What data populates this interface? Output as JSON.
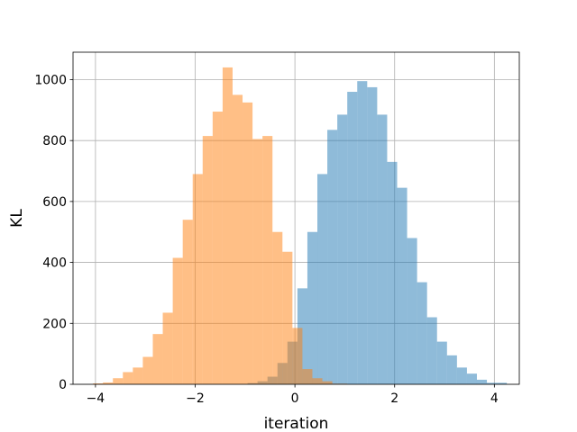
{
  "chart_data": {
    "type": "histogram",
    "xlabel": "iteration",
    "ylabel": "KL",
    "xlim": [
      -4.45,
      4.5
    ],
    "ylim": [
      0,
      1090
    ],
    "grid": true,
    "x_ticks": [
      -4,
      -2,
      0,
      2,
      4
    ],
    "x_tick_labels": [
      "−4",
      "−2",
      "0",
      "2",
      "4"
    ],
    "y_ticks": [
      0,
      200,
      400,
      600,
      800,
      1000
    ],
    "y_tick_labels": [
      "0",
      "200",
      "400",
      "600",
      "800",
      "1000"
    ],
    "series": [
      {
        "color": "#1f77b4",
        "opacity": 0.5,
        "bin_edges": [
          -0.95,
          -0.75,
          -0.55,
          -0.35,
          -0.15,
          0.05,
          0.25,
          0.45,
          0.65,
          0.85,
          1.05,
          1.25,
          1.45,
          1.65,
          1.85,
          2.05,
          2.25,
          2.45,
          2.65,
          2.85,
          3.05,
          3.25,
          3.45,
          3.65,
          3.85,
          4.05,
          4.25
        ],
        "counts": [
          4,
          10,
          25,
          70,
          140,
          315,
          500,
          690,
          835,
          885,
          960,
          995,
          975,
          885,
          730,
          645,
          480,
          335,
          220,
          140,
          95,
          55,
          35,
          15,
          5,
          5
        ]
      },
      {
        "color": "#ff7f0e",
        "opacity": 0.5,
        "bin_edges": [
          -4.05,
          -3.85,
          -3.65,
          -3.45,
          -3.25,
          -3.05,
          -2.85,
          -2.65,
          -2.45,
          -2.25,
          -2.05,
          -1.85,
          -1.65,
          -1.45,
          -1.25,
          -1.05,
          -0.85,
          -0.65,
          -0.45,
          -0.25,
          -0.05,
          0.15,
          0.35,
          0.55,
          0.75,
          1.05
        ],
        "counts": [
          3,
          6,
          20,
          40,
          55,
          90,
          165,
          235,
          415,
          540,
          690,
          815,
          895,
          1040,
          950,
          925,
          805,
          815,
          500,
          435,
          185,
          50,
          20,
          10,
          2
        ]
      }
    ]
  }
}
